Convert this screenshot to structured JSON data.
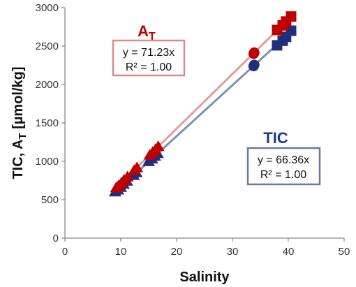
{
  "chart_data": {
    "type": "scatter",
    "xlabel": "Salinity",
    "ylabel": {
      "main": "TIC, A",
      "sub": "T",
      "rest": " [µmol/kg]"
    },
    "xlim": [
      0,
      50
    ],
    "ylim": [
      0,
      3000
    ],
    "xticks": [
      0,
      10,
      20,
      30,
      40,
      50
    ],
    "yticks": [
      0,
      500,
      1000,
      1500,
      2000,
      2500,
      3000
    ],
    "grid": false,
    "series": [
      {
        "name": {
          "main": "A",
          "sub": "T"
        },
        "color": "#c00000",
        "line_color": "#e89a9a",
        "box_color": "#d98c8c",
        "label_color": "#c00000",
        "equation": "y = 71.23x",
        "r2": "R² = 1.00",
        "slope": 71.23,
        "fit_x": [
          9,
          40.5
        ],
        "points": [
          {
            "x": 9.2,
            "y": 655,
            "marker": "triangle"
          },
          {
            "x": 9.6,
            "y": 680,
            "marker": "triangle"
          },
          {
            "x": 10.1,
            "y": 715,
            "marker": "triangle"
          },
          {
            "x": 10.6,
            "y": 755,
            "marker": "triangle"
          },
          {
            "x": 11.2,
            "y": 795,
            "marker": "triangle"
          },
          {
            "x": 12.4,
            "y": 880,
            "marker": "triangle"
          },
          {
            "x": 12.9,
            "y": 915,
            "marker": "triangle"
          },
          {
            "x": 15.2,
            "y": 1080,
            "marker": "triangle"
          },
          {
            "x": 15.7,
            "y": 1115,
            "marker": "triangle"
          },
          {
            "x": 16.2,
            "y": 1150,
            "marker": "triangle"
          },
          {
            "x": 16.7,
            "y": 1190,
            "marker": "triangle"
          },
          {
            "x": 33.8,
            "y": 2400,
            "marker": "circle"
          },
          {
            "x": 33.9,
            "y": 2415,
            "marker": "circle"
          },
          {
            "x": 38.0,
            "y": 2710,
            "marker": "square"
          },
          {
            "x": 39.0,
            "y": 2770,
            "marker": "square"
          },
          {
            "x": 39.6,
            "y": 2820,
            "marker": "square"
          },
          {
            "x": 40.5,
            "y": 2885,
            "marker": "square"
          }
        ]
      },
      {
        "name": {
          "main": "TIC",
          "sub": ""
        },
        "color": "#1f2f7a",
        "line_color": "#8090b0",
        "box_color": "#6a7a9a",
        "label_color": "#1f3a8a",
        "equation": "y = 66.36x",
        "r2": "R² = 1.00",
        "slope": 66.36,
        "fit_x": [
          9,
          40.5
        ],
        "points": [
          {
            "x": 9.0,
            "y": 600,
            "marker": "triangle"
          },
          {
            "x": 9.5,
            "y": 625,
            "marker": "triangle"
          },
          {
            "x": 10.0,
            "y": 660,
            "marker": "triangle"
          },
          {
            "x": 10.5,
            "y": 700,
            "marker": "triangle"
          },
          {
            "x": 11.1,
            "y": 740,
            "marker": "triangle"
          },
          {
            "x": 12.3,
            "y": 815,
            "marker": "triangle"
          },
          {
            "x": 12.8,
            "y": 850,
            "marker": "triangle"
          },
          {
            "x": 15.0,
            "y": 995,
            "marker": "triangle"
          },
          {
            "x": 15.6,
            "y": 1030,
            "marker": "triangle"
          },
          {
            "x": 16.1,
            "y": 1065,
            "marker": "triangle"
          },
          {
            "x": 16.6,
            "y": 1100,
            "marker": "triangle"
          },
          {
            "x": 33.8,
            "y": 2240,
            "marker": "circle"
          },
          {
            "x": 33.9,
            "y": 2255,
            "marker": "circle"
          },
          {
            "x": 38.0,
            "y": 2510,
            "marker": "square"
          },
          {
            "x": 39.0,
            "y": 2570,
            "marker": "square"
          },
          {
            "x": 39.6,
            "y": 2620,
            "marker": "square"
          },
          {
            "x": 40.5,
            "y": 2700,
            "marker": "square"
          }
        ]
      }
    ]
  }
}
